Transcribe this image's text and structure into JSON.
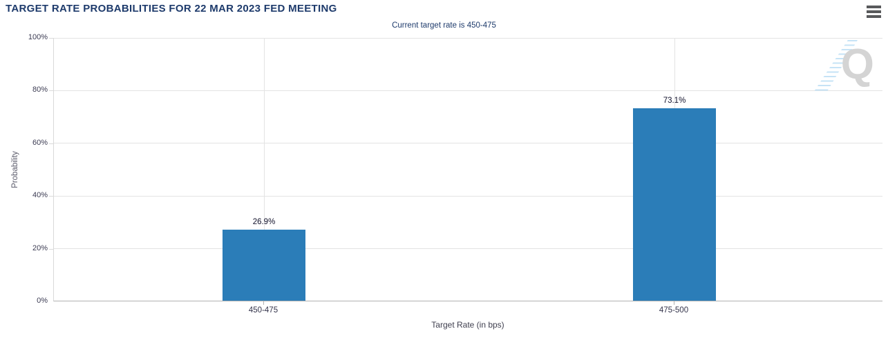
{
  "header": {
    "title": "TARGET RATE PROBABILITIES FOR 22 MAR 2023 FED MEETING",
    "menu_icon": "hamburger-menu-icon"
  },
  "chart_data": {
    "type": "bar",
    "title": "TARGET RATE PROBABILITIES FOR 22 MAR 2023 FED MEETING",
    "subtitle": "Current target rate is 450-475",
    "categories": [
      "450-475",
      "475-500"
    ],
    "values": [
      26.9,
      73.1
    ],
    "value_labels": [
      "26.9%",
      "73.1%"
    ],
    "xlabel": "Target Rate (in bps)",
    "ylabel": "Probability",
    "ylim": [
      0,
      100
    ],
    "yticks": [
      "100%",
      "80%",
      "60%",
      "40%",
      "20%",
      "0%"
    ],
    "grid": true,
    "legend": "none",
    "bar_color": "#2b7db8"
  },
  "watermark": {
    "letter": "Q"
  },
  "colors": {
    "title": "#1d3a6b",
    "bar": "#2b7db8",
    "gridline": "#e3e3e3",
    "axis_line": "#b0b0b0",
    "watermark_gray": "#d4d4d4",
    "watermark_blue": "#bfe0f5",
    "menu_icon": "#58595b"
  }
}
